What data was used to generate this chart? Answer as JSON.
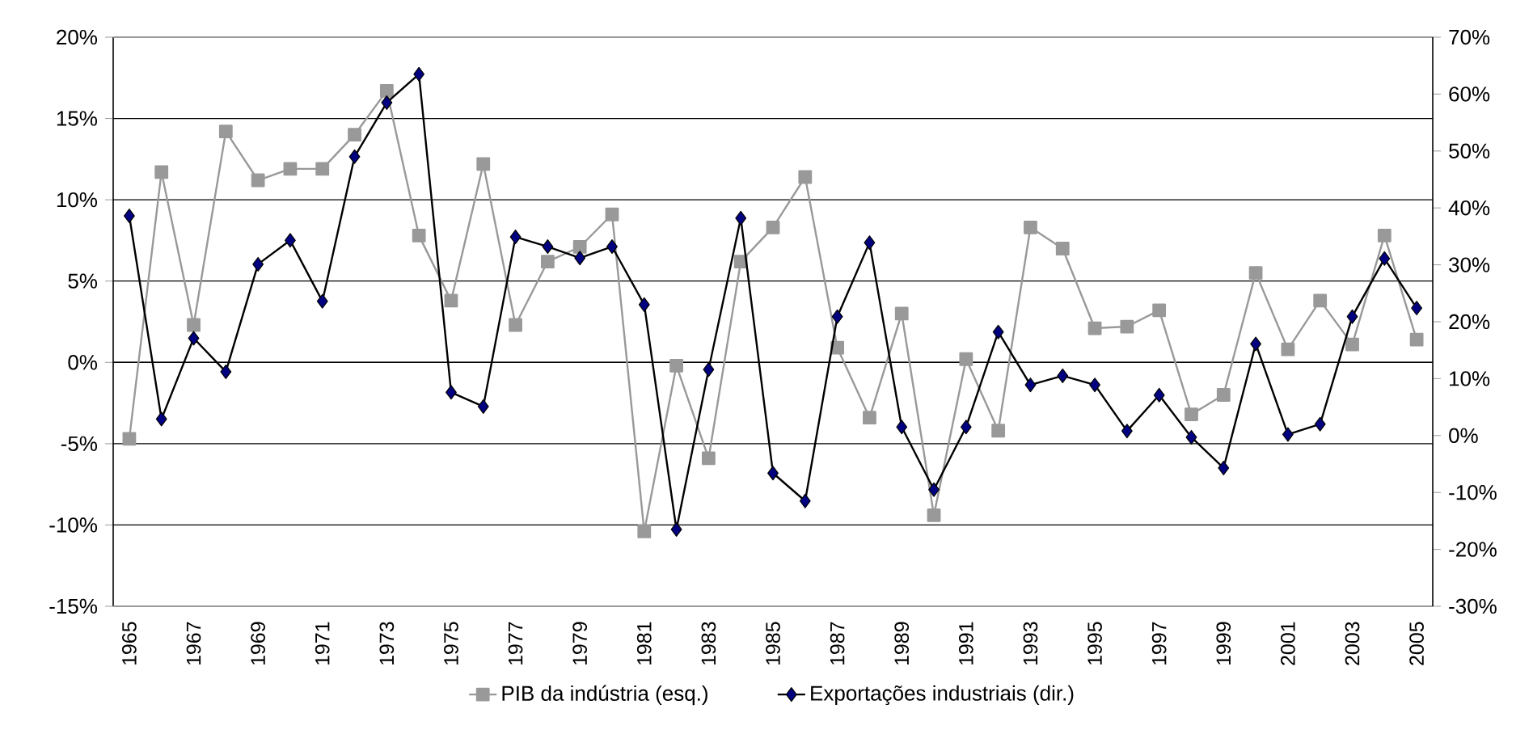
{
  "chart_data": {
    "type": "line",
    "categories": [
      "1965",
      null,
      "1967",
      null,
      "1969",
      null,
      "1971",
      null,
      "1973",
      null,
      "1975",
      null,
      "1977",
      null,
      "1979",
      null,
      "1981",
      null,
      "1983",
      null,
      "1985",
      null,
      "1987",
      null,
      "1989",
      null,
      "1991",
      null,
      "1993",
      null,
      "1995",
      null,
      "1997",
      null,
      "1999",
      null,
      "2001",
      null,
      "2003",
      null,
      "2005"
    ],
    "series": [
      {
        "name": "PIB da indústria (esq.)",
        "color": "#999999",
        "marker": "square",
        "values": [
          -4.7,
          11.7,
          2.3,
          14.2,
          11.2,
          11.9,
          11.9,
          14.0,
          16.7,
          7.8,
          3.8,
          12.2,
          2.3,
          6.2,
          7.1,
          9.1,
          -10.4,
          -0.2,
          -5.9,
          6.2,
          8.3,
          11.4,
          0.9,
          -3.4,
          3.0,
          -9.4,
          0.2,
          -4.2,
          8.3,
          7.0,
          2.1,
          2.2,
          3.2,
          -3.2,
          -2.0,
          5.5,
          0.8,
          3.8,
          1.1,
          7.8,
          1.4
        ]
      },
      {
        "name": "Exportações industriais (dir.)",
        "color": "#000080",
        "marker": "diamond",
        "axis": "y2",
        "values": [
          38.6,
          2.9,
          17.1,
          11.2,
          30.1,
          34.3,
          23.6,
          49.0,
          58.5,
          63.5,
          7.6,
          5.1,
          34.9,
          33.2,
          31.2,
          33.2,
          23.0,
          -16.5,
          11.6,
          38.2,
          -6.6,
          -11.5,
          20.9,
          33.9,
          1.5,
          -9.5,
          1.5,
          18.2,
          8.9,
          10.5,
          8.9,
          0.8,
          7.1,
          -0.3,
          -5.7,
          16.1,
          0.2,
          2.0,
          20.9,
          31.1,
          22.4
        ]
      }
    ],
    "ylim": [
      -15,
      20
    ],
    "yticks": [
      {
        "value": -15,
        "label": "-15%"
      },
      {
        "value": -10,
        "label": "-10%"
      },
      {
        "value": -5,
        "label": "-5%"
      },
      {
        "value": 0,
        "label": "0%"
      },
      {
        "value": 5,
        "label": "5%"
      },
      {
        "value": 10,
        "label": "10%"
      },
      {
        "value": 15,
        "label": "15%"
      },
      {
        "value": 20,
        "label": "20%"
      }
    ],
    "y2lim": [
      -30,
      70
    ],
    "y2ticks": [
      {
        "value": -30,
        "label": "-30%"
      },
      {
        "value": -20,
        "label": "-20%"
      },
      {
        "value": -10,
        "label": "-10%"
      },
      {
        "value": 0,
        "label": "0%"
      },
      {
        "value": 10,
        "label": "10%"
      },
      {
        "value": 20,
        "label": "20%"
      },
      {
        "value": 30,
        "label": "30%"
      },
      {
        "value": 40,
        "label": "40%"
      },
      {
        "value": 50,
        "label": "50%"
      },
      {
        "value": 60,
        "label": "60%"
      },
      {
        "value": 70,
        "label": "70%"
      }
    ],
    "grid": "y",
    "legend": "bottom"
  }
}
